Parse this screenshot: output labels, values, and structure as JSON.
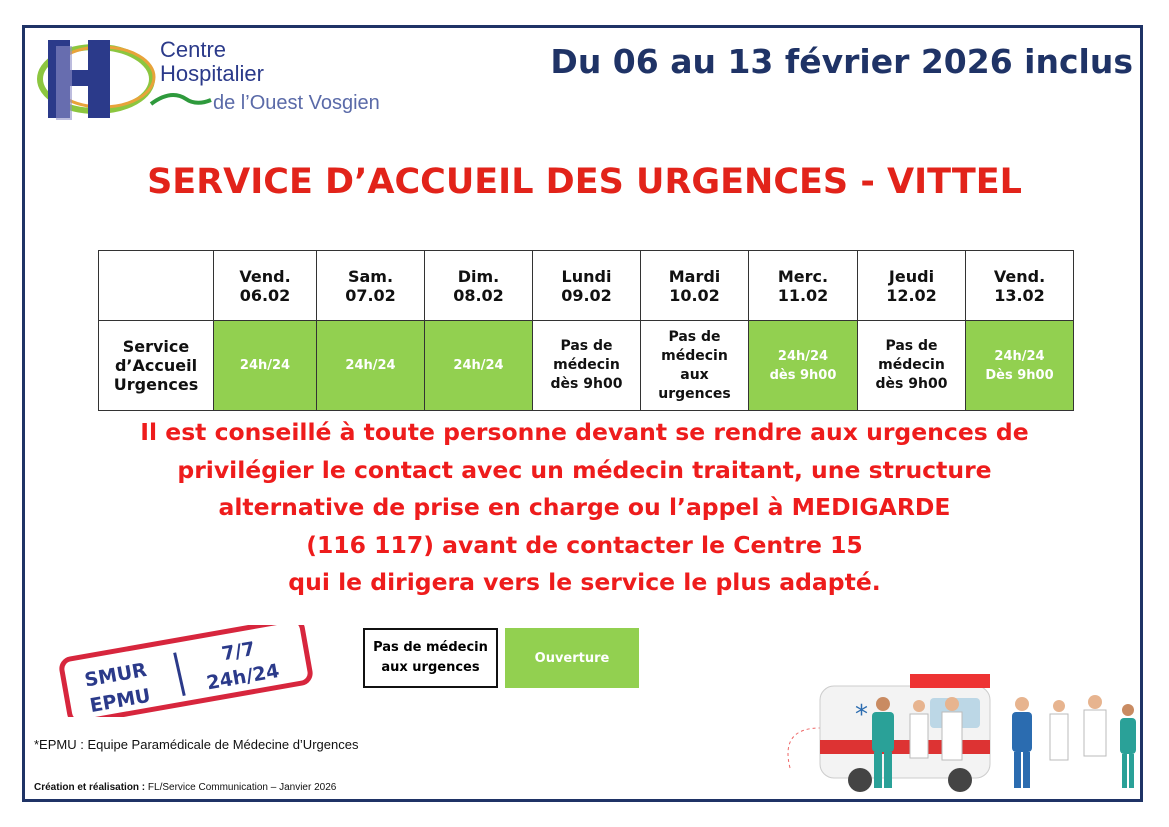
{
  "logo": {
    "line1": "Centre",
    "line2": "Hospitalier",
    "line3": "de l’Ouest Vosgien",
    "letter": "H"
  },
  "date_range": "Du 06 au 13 février 2026 inclus",
  "title": "SERVICE D’ACCUEIL DES URGENCES - VITTEL",
  "table": {
    "days": [
      [
        "Vend.",
        "06.02"
      ],
      [
        "Sam.",
        "07.02"
      ],
      [
        "Dim.",
        "08.02"
      ],
      [
        "Lundi",
        "09.02"
      ],
      [
        "Mardi",
        "10.02"
      ],
      [
        "Merc.",
        "11.02"
      ],
      [
        "Jeudi",
        "12.02"
      ],
      [
        "Vend.",
        "13.02"
      ]
    ],
    "row_label": [
      "Service",
      "d’Accueil",
      "Urgences"
    ],
    "cells": [
      {
        "lines": [
          "24h/24"
        ],
        "open": true
      },
      {
        "lines": [
          "24h/24"
        ],
        "open": true
      },
      {
        "lines": [
          "24h/24"
        ],
        "open": true
      },
      {
        "lines": [
          "Pas de",
          "médecin",
          "dès 9h00"
        ],
        "open": false
      },
      {
        "lines": [
          "Pas de",
          "médecin",
          "aux",
          "urgences"
        ],
        "open": false
      },
      {
        "lines": [
          "24h/24",
          "dès 9h00"
        ],
        "open": true
      },
      {
        "lines": [
          "Pas de",
          "médecin",
          "dès 9h00"
        ],
        "open": false
      },
      {
        "lines": [
          "24h/24",
          "Dès 9h00"
        ],
        "open": true
      }
    ]
  },
  "message": [
    "Il est conseillé à toute personne devant se rendre aux urgences de",
    "privilégier le contact avec un médecin traitant, une structure",
    "alternative de prise en charge ou l’appel à MEDIGARDE",
    "(116 117) avant de contacter le Centre 15",
    "qui le dirigera vers le service le plus adapté."
  ],
  "stamp": {
    "left1": "SMUR",
    "left2": "EPMU",
    "right1": "7/7",
    "right2": "24h/24"
  },
  "legend": {
    "no_doctor": [
      "Pas de médecin",
      "aux urgences"
    ],
    "open": "Ouverture"
  },
  "footnote": "*EPMU : Equipe Paramédicale de Médecine d’Urgences",
  "credits": {
    "label": "Création et réalisation :",
    "text": " FL/Service Communication – Janvier 2026"
  },
  "colors": {
    "navy": "#1f3366",
    "red": "#e2231a",
    "green": "#92d050"
  }
}
